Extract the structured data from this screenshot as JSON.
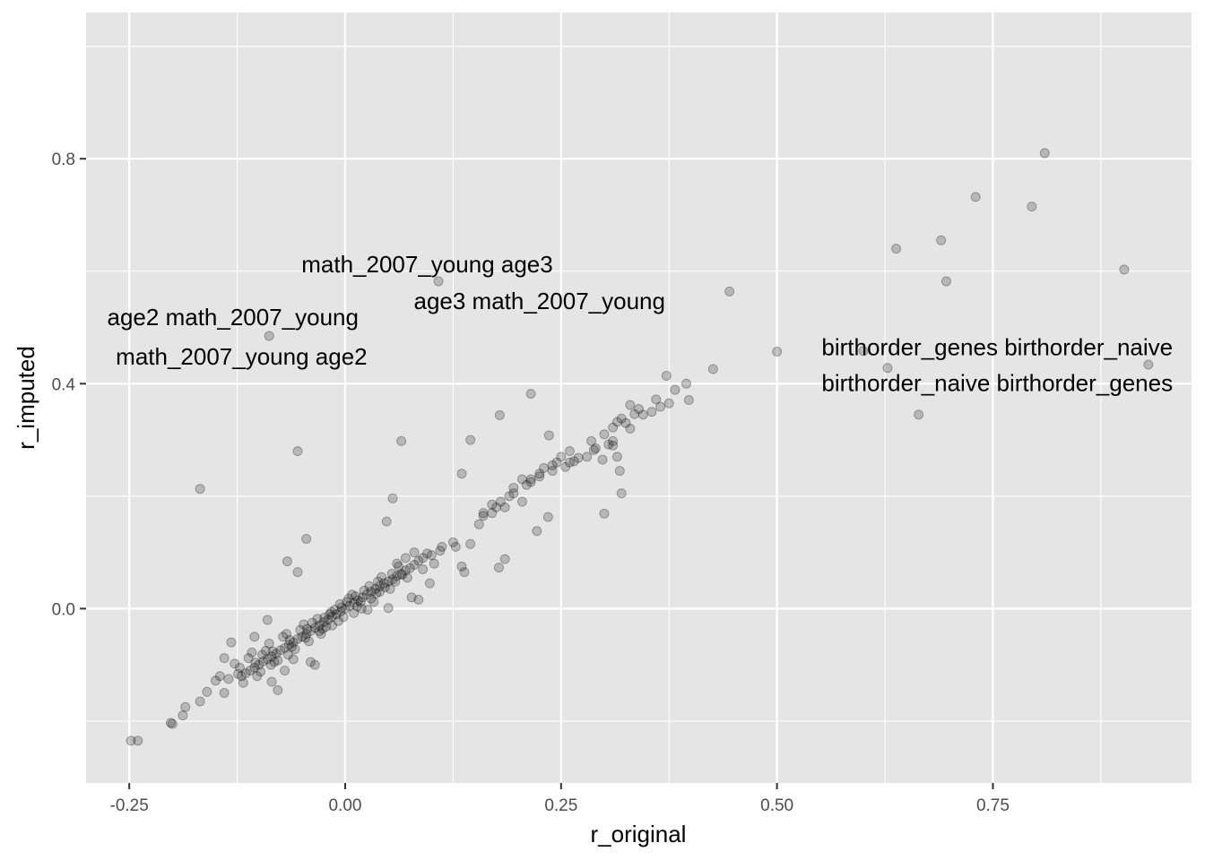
{
  "chart_data": {
    "type": "scatter",
    "title": "",
    "xlabel": "r_original",
    "ylabel": "r_imputed",
    "xlim": [
      -0.3,
      0.98
    ],
    "ylim": [
      -0.31,
      1.06
    ],
    "x_ticks": [
      -0.25,
      0.0,
      0.25,
      0.5,
      0.75
    ],
    "x_tick_labels": [
      "-0.25",
      "0.00",
      "0.25",
      "0.50",
      "0.75"
    ],
    "y_ticks": [
      0.0,
      0.4,
      0.8
    ],
    "y_tick_labels": [
      "0.0",
      "0.4",
      "0.8"
    ],
    "grid": true,
    "legend": "none",
    "colors": {
      "panel": "#e5e5e5",
      "grid": "#ffffff",
      "point_fill": "#000000",
      "point_opacity": 0.2
    },
    "annotations": [
      {
        "text": "math_2007_young age3",
        "x": 0.095,
        "y": 0.612
      },
      {
        "text": "age3 math_2007_young",
        "x": 0.225,
        "y": 0.547
      },
      {
        "text": "age2 math_2007_young",
        "x": -0.13,
        "y": 0.518
      },
      {
        "text": "math_2007_young age2",
        "x": -0.12,
        "y": 0.448
      },
      {
        "text": "birthorder_genes birthorder_naive",
        "x": 0.755,
        "y": 0.465
      },
      {
        "text": "birthorder_naive birthorder_genes",
        "x": 0.755,
        "y": 0.401
      }
    ],
    "points": [
      [
        0.81,
        0.81
      ],
      [
        0.73,
        0.732
      ],
      [
        0.795,
        0.715
      ],
      [
        0.69,
        0.655
      ],
      [
        0.638,
        0.64
      ],
      [
        0.902,
        0.603
      ],
      [
        0.696,
        0.582
      ],
      [
        0.445,
        0.564
      ],
      [
        0.108,
        0.582
      ],
      [
        -0.088,
        0.485
      ],
      [
        0.5,
        0.457
      ],
      [
        0.6,
        0.458
      ],
      [
        0.628,
        0.428
      ],
      [
        0.93,
        0.434
      ],
      [
        0.664,
        0.345
      ],
      [
        0.426,
        0.426
      ],
      [
        0.372,
        0.414
      ],
      [
        0.395,
        0.4
      ],
      [
        0.398,
        0.371
      ],
      [
        0.382,
        0.389
      ],
      [
        0.215,
        0.382
      ],
      [
        0.179,
        0.344
      ],
      [
        -0.168,
        0.213
      ],
      [
        -0.055,
        0.28
      ],
      [
        0.065,
        0.298
      ],
      [
        0.145,
        0.3
      ],
      [
        0.135,
        0.24
      ],
      [
        0.055,
        0.196
      ],
      [
        0.048,
        0.155
      ],
      [
        -0.045,
        0.124
      ],
      [
        -0.067,
        0.084
      ],
      [
        -0.055,
        0.065
      ],
      [
        0.3,
        0.169
      ],
      [
        0.32,
        0.205
      ],
      [
        0.235,
        0.163
      ],
      [
        0.222,
        0.138
      ],
      [
        0.185,
        0.088
      ],
      [
        0.178,
        0.073
      ],
      [
        0.135,
        0.075
      ],
      [
        0.138,
        0.065
      ],
      [
        0.125,
        0.118
      ],
      [
        0.112,
        0.11
      ],
      [
        0.085,
        0.016
      ],
      [
        0.05,
        0.001
      ],
      [
        0.335,
        0.346
      ],
      [
        0.33,
        0.362
      ],
      [
        0.365,
        0.359
      ],
      [
        0.36,
        0.372
      ],
      [
        0.345,
        0.345
      ],
      [
        0.32,
        0.338
      ],
      [
        0.315,
        0.332
      ],
      [
        0.31,
        0.322
      ],
      [
        0.3,
        0.31
      ],
      [
        0.31,
        0.298
      ],
      [
        0.285,
        0.298
      ],
      [
        0.288,
        0.282
      ],
      [
        0.27,
        0.268
      ],
      [
        0.26,
        0.28
      ],
      [
        0.25,
        0.27
      ],
      [
        0.245,
        0.26
      ],
      [
        0.24,
        0.255
      ],
      [
        0.23,
        0.25
      ],
      [
        0.225,
        0.24
      ],
      [
        0.215,
        0.23
      ],
      [
        0.21,
        0.22
      ],
      [
        0.195,
        0.215
      ],
      [
        0.19,
        0.2
      ],
      [
        0.18,
        0.19
      ],
      [
        0.175,
        0.18
      ],
      [
        0.17,
        0.17
      ],
      [
        0.16,
        0.165
      ],
      [
        0.155,
        0.15
      ],
      [
        0.315,
        0.27
      ],
      [
        0.31,
        0.29
      ],
      [
        0.298,
        0.265
      ],
      [
        0.236,
        0.308
      ],
      [
        0.26,
        0.26
      ],
      [
        0.33,
        0.32
      ],
      [
        0.318,
        0.245
      ],
      [
        0.205,
        0.19
      ],
      [
        0.11,
        0.103
      ],
      [
        0.095,
        0.098
      ],
      [
        0.09,
        0.09
      ],
      [
        0.085,
        0.085
      ],
      [
        0.08,
        0.078
      ],
      [
        0.075,
        0.072
      ],
      [
        0.07,
        0.068
      ],
      [
        0.065,
        0.062
      ],
      [
        0.06,
        0.058
      ],
      [
        0.055,
        0.052
      ],
      [
        0.05,
        0.048
      ],
      [
        0.045,
        0.045
      ],
      [
        0.04,
        0.04
      ],
      [
        0.035,
        0.035
      ],
      [
        0.03,
        0.03
      ],
      [
        0.025,
        0.025
      ],
      [
        0.02,
        0.02
      ],
      [
        0.015,
        0.015
      ],
      [
        0.01,
        0.01
      ],
      [
        0.005,
        0.005
      ],
      [
        0.0,
        0.0
      ],
      [
        -0.005,
        -0.005
      ],
      [
        -0.01,
        -0.01
      ],
      [
        -0.015,
        -0.014
      ],
      [
        -0.02,
        -0.02
      ],
      [
        -0.025,
        -0.024
      ],
      [
        -0.03,
        -0.03
      ],
      [
        -0.035,
        -0.034
      ],
      [
        -0.04,
        -0.04
      ],
      [
        -0.045,
        -0.045
      ],
      [
        -0.05,
        -0.05
      ],
      [
        -0.055,
        -0.054
      ],
      [
        -0.06,
        -0.06
      ],
      [
        -0.065,
        -0.064
      ],
      [
        -0.07,
        -0.07
      ],
      [
        -0.075,
        -0.074
      ],
      [
        -0.08,
        -0.08
      ],
      [
        -0.085,
        -0.085
      ],
      [
        -0.09,
        -0.09
      ],
      [
        -0.095,
        -0.094
      ],
      [
        -0.1,
        -0.1
      ],
      [
        -0.105,
        -0.105
      ],
      [
        -0.11,
        -0.11
      ],
      [
        -0.115,
        -0.115
      ],
      [
        -0.12,
        -0.12
      ],
      [
        0.012,
        0.022
      ],
      [
        0.018,
        0.012
      ],
      [
        0.028,
        0.04
      ],
      [
        0.036,
        0.027
      ],
      [
        0.042,
        0.056
      ],
      [
        0.052,
        0.035
      ],
      [
        0.062,
        0.075
      ],
      [
        0.072,
        0.055
      ],
      [
        0.004,
        0.018
      ],
      [
        -0.006,
        0.008
      ],
      [
        -0.012,
        -0.002
      ],
      [
        -0.022,
        -0.032
      ],
      [
        -0.032,
        -0.018
      ],
      [
        -0.042,
        -0.058
      ],
      [
        -0.048,
        -0.028
      ],
      [
        -0.058,
        -0.072
      ],
      [
        -0.068,
        -0.045
      ],
      [
        -0.078,
        -0.092
      ],
      [
        -0.088,
        -0.062
      ],
      [
        -0.098,
        -0.112
      ],
      [
        -0.108,
        -0.078
      ],
      [
        -0.118,
        -0.132
      ],
      [
        -0.128,
        -0.098
      ],
      [
        -0.14,
        -0.15
      ],
      [
        -0.15,
        -0.128
      ],
      [
        -0.16,
        -0.148
      ],
      [
        -0.168,
        -0.165
      ],
      [
        -0.185,
        -0.175
      ],
      [
        -0.188,
        -0.19
      ],
      [
        -0.2,
        -0.205
      ],
      [
        -0.202,
        -0.203
      ],
      [
        -0.24,
        -0.235
      ],
      [
        -0.248,
        -0.235
      ],
      [
        -0.14,
        -0.088
      ],
      [
        -0.132,
        -0.06
      ],
      [
        -0.09,
        -0.02
      ],
      [
        -0.06,
        -0.09
      ],
      [
        -0.04,
        -0.095
      ],
      [
        -0.035,
        -0.1
      ],
      [
        -0.085,
        -0.13
      ],
      [
        -0.078,
        -0.145
      ],
      [
        -0.07,
        -0.11
      ],
      [
        -0.105,
        -0.05
      ],
      [
        -0.03,
        -0.04
      ],
      [
        -0.015,
        -0.03
      ],
      [
        0.1,
        0.095
      ],
      [
        0.103,
        0.08
      ],
      [
        0.09,
        0.07
      ],
      [
        0.077,
        0.02
      ],
      [
        0.098,
        0.045
      ],
      [
        0.04,
        0.03
      ],
      [
        0.033,
        0.012
      ],
      [
        0.026,
        -0.002
      ],
      [
        0.019,
        0.0
      ],
      [
        0.008,
        0.025
      ],
      [
        -0.002,
        -0.015
      ],
      [
        -0.008,
        -0.022
      ],
      [
        -0.018,
        -0.01
      ],
      [
        -0.028,
        -0.045
      ],
      [
        -0.038,
        -0.025
      ],
      [
        -0.052,
        -0.038
      ],
      [
        -0.062,
        -0.068
      ],
      [
        -0.072,
        -0.05
      ],
      [
        -0.082,
        -0.095
      ],
      [
        -0.092,
        -0.075
      ],
      [
        -0.102,
        -0.12
      ],
      [
        -0.112,
        -0.088
      ],
      [
        -0.122,
        -0.105
      ],
      [
        -0.135,
        -0.125
      ],
      [
        -0.145,
        -0.12
      ],
      [
        0.145,
        0.115
      ],
      [
        0.128,
        0.11
      ],
      [
        0.06,
        0.08
      ],
      [
        0.07,
        0.09
      ],
      [
        0.08,
        0.1
      ],
      [
        0.16,
        0.17
      ],
      [
        0.17,
        0.185
      ],
      [
        0.185,
        0.18
      ],
      [
        0.195,
        0.205
      ],
      [
        0.205,
        0.23
      ],
      [
        0.215,
        0.225
      ],
      [
        0.225,
        0.235
      ],
      [
        0.24,
        0.245
      ],
      [
        0.255,
        0.252
      ],
      [
        0.265,
        0.262
      ],
      [
        0.28,
        0.27
      ],
      [
        0.29,
        0.285
      ],
      [
        0.305,
        0.292
      ],
      [
        0.325,
        0.33
      ],
      [
        0.34,
        0.355
      ],
      [
        0.355,
        0.35
      ],
      [
        0.375,
        0.365
      ],
      [
        0.022,
        0.032
      ],
      [
        0.046,
        0.038
      ],
      [
        0.058,
        0.048
      ],
      [
        0.066,
        0.06
      ],
      [
        0.014,
        0.004
      ],
      [
        -0.004,
        0.002
      ],
      [
        -0.024,
        -0.016
      ],
      [
        -0.044,
        -0.036
      ],
      [
        -0.064,
        -0.056
      ],
      [
        -0.084,
        -0.076
      ],
      [
        -0.104,
        -0.096
      ],
      [
        -0.124,
        -0.116
      ],
      [
        -0.016,
        -0.006
      ],
      [
        0.002,
        0.012
      ],
      [
        0.03,
        0.018
      ],
      [
        0.038,
        0.048
      ],
      [
        0.054,
        0.062
      ],
      [
        0.01,
        -0.008
      ],
      [
        -0.026,
        -0.036
      ],
      [
        -0.046,
        -0.052
      ],
      [
        -0.066,
        -0.082
      ],
      [
        -0.086,
        -0.1
      ],
      [
        -0.096,
        -0.082
      ]
    ]
  }
}
